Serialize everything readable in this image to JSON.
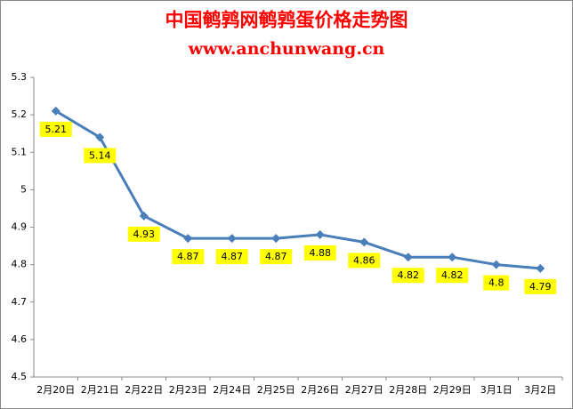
{
  "chart_data": {
    "type": "line",
    "title": "中国鹌鹑网鹌鹑蛋价格走势图",
    "subtitle": "www.anchunwang.cn",
    "categories": [
      "2月20日",
      "2月21日",
      "2月22日",
      "2月23日",
      "2月24日",
      "2月25日",
      "2月26日",
      "2月27日",
      "2月28日",
      "2月29日",
      "3月1日",
      "3月2日"
    ],
    "series": [
      {
        "color": "#4a7ebb",
        "values": [
          5.21,
          5.14,
          4.93,
          4.87,
          4.87,
          4.87,
          4.88,
          4.86,
          4.82,
          4.82,
          4.8,
          4.79
        ]
      }
    ],
    "ylim": [
      4.5,
      5.3
    ],
    "yticks": [
      4.5,
      4.6,
      4.7,
      4.8,
      4.9,
      5,
      5.1,
      5.2,
      5.3
    ],
    "grid": false,
    "label_color": "#ffff00"
  }
}
